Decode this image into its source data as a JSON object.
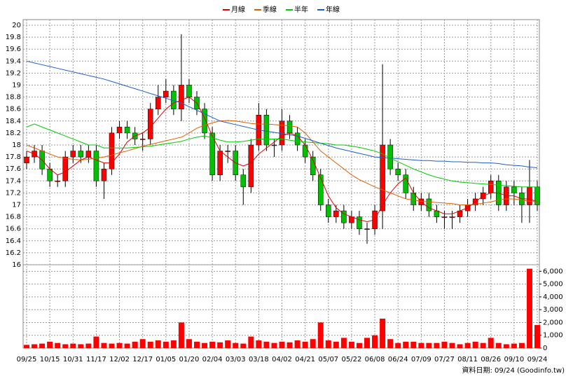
{
  "chart_data": {
    "type": "candlestick",
    "categories": [
      "09/25",
      null,
      null,
      "10/15",
      null,
      null,
      "10/31",
      null,
      null,
      "11/17",
      null,
      null,
      "12/02",
      null,
      null,
      "12/17",
      null,
      null,
      "01/05",
      null,
      null,
      "01/20",
      null,
      null,
      "02/04",
      null,
      null,
      "03/03",
      null,
      null,
      "03/18",
      null,
      null,
      "04/02",
      null,
      null,
      "04/21",
      null,
      null,
      "05/07",
      null,
      null,
      "05/22",
      null,
      null,
      "06/08",
      null,
      null,
      "06/24",
      null,
      null,
      "07/09",
      null,
      null,
      "07/27",
      null,
      null,
      "08/11",
      null,
      null,
      "08/26",
      null,
      null,
      "09/10",
      null,
      null,
      "09/24"
    ],
    "open": [
      17.7,
      17.8,
      17.9,
      17.6,
      17.4,
      17.4,
      17.8,
      17.9,
      17.8,
      17.9,
      17.4,
      17.6,
      18.2,
      18.3,
      18.2,
      18.1,
      18.1,
      18.6,
      18.8,
      18.9,
      18.6,
      19.0,
      18.8,
      18.6,
      18.2,
      17.5,
      17.9,
      17.9,
      17.5,
      17.3,
      18.0,
      18.5,
      18.0,
      18.0,
      18.4,
      18.2,
      18.0,
      17.8,
      17.5,
      17.0,
      16.8,
      16.9,
      16.7,
      16.8,
      16.6,
      16.6,
      16.9,
      18.0,
      17.6,
      17.5,
      17.2,
      17.0,
      17.1,
      16.9,
      16.8,
      16.8,
      16.8,
      16.9,
      17.0,
      17.1,
      17.2,
      17.4,
      17.0,
      17.3,
      17.2,
      17.0,
      17.3
    ],
    "high": [
      17.9,
      18.0,
      18.0,
      17.7,
      17.5,
      17.9,
      18.0,
      18.0,
      18.0,
      18.0,
      17.7,
      18.3,
      18.4,
      18.4,
      18.3,
      18.2,
      18.7,
      19.0,
      19.1,
      19.0,
      19.85,
      19.1,
      18.9,
      18.7,
      18.3,
      18.0,
      18.0,
      18.0,
      17.6,
      18.1,
      18.7,
      18.6,
      18.1,
      18.6,
      18.5,
      18.3,
      18.1,
      17.9,
      17.6,
      17.1,
      17.0,
      17.0,
      16.9,
      16.9,
      16.7,
      17.0,
      19.35,
      18.1,
      17.7,
      17.6,
      17.3,
      17.2,
      17.2,
      17.0,
      16.9,
      16.9,
      17.0,
      17.1,
      17.2,
      17.3,
      17.5,
      17.5,
      17.4,
      17.4,
      17.3,
      17.75,
      17.4
    ],
    "low": [
      17.6,
      17.7,
      17.5,
      17.3,
      17.3,
      17.3,
      17.7,
      17.7,
      17.7,
      17.3,
      17.1,
      17.5,
      18.1,
      18.1,
      18.0,
      17.9,
      18.0,
      18.5,
      18.7,
      18.5,
      18.4,
      18.7,
      18.5,
      18.1,
      17.4,
      17.4,
      17.7,
      17.4,
      17.0,
      17.2,
      17.9,
      17.9,
      17.8,
      17.9,
      18.1,
      17.9,
      17.7,
      17.4,
      16.9,
      16.7,
      16.7,
      16.6,
      16.6,
      16.5,
      16.35,
      16.5,
      16.6,
      17.5,
      17.4,
      17.1,
      16.9,
      16.9,
      16.8,
      16.7,
      16.6,
      16.6,
      16.7,
      16.8,
      16.9,
      17.0,
      17.1,
      16.9,
      16.9,
      17.0,
      16.7,
      16.7,
      16.9
    ],
    "close": [
      17.8,
      17.9,
      17.6,
      17.4,
      17.4,
      17.8,
      17.9,
      17.8,
      17.9,
      17.4,
      17.6,
      18.2,
      18.3,
      18.2,
      18.1,
      18.1,
      18.6,
      18.8,
      18.9,
      18.6,
      19.0,
      18.8,
      18.6,
      18.2,
      17.5,
      17.9,
      17.9,
      17.5,
      17.3,
      18.0,
      18.5,
      18.0,
      18.0,
      18.4,
      18.2,
      18.0,
      17.8,
      17.5,
      17.0,
      16.8,
      16.9,
      16.7,
      16.8,
      16.6,
      16.6,
      16.9,
      18.0,
      17.6,
      17.5,
      17.2,
      17.0,
      17.1,
      16.9,
      16.8,
      16.8,
      16.8,
      16.9,
      17.0,
      17.1,
      17.2,
      17.4,
      17.0,
      17.3,
      17.2,
      17.0,
      17.3,
      17.0
    ],
    "volume": [
      250,
      300,
      350,
      500,
      400,
      300,
      350,
      300,
      350,
      900,
      400,
      350,
      400,
      350,
      500,
      700,
      500,
      600,
      500,
      600,
      2000,
      700,
      500,
      400,
      500,
      450,
      600,
      400,
      350,
      900,
      600,
      500,
      400,
      500,
      450,
      600,
      500,
      700,
      2000,
      600,
      500,
      800,
      500,
      400,
      800,
      1000,
      2300,
      700,
      400,
      500,
      500,
      400,
      400,
      400,
      500,
      400,
      300,
      400,
      500,
      400,
      800,
      400,
      300,
      350,
      400,
      6200,
      1800
    ],
    "series": [
      {
        "name": "月線",
        "color": "#e00000",
        "values": [
          17.9,
          17.85,
          17.75,
          17.6,
          17.5,
          17.55,
          17.65,
          17.75,
          17.8,
          17.75,
          17.7,
          17.7,
          17.85,
          18.05,
          18.15,
          18.2,
          18.3,
          18.45,
          18.6,
          18.7,
          18.75,
          18.8,
          18.7,
          18.45,
          18.15,
          17.9,
          17.8,
          17.7,
          17.65,
          17.7,
          17.85,
          17.95,
          18.05,
          18.15,
          18.2,
          18.15,
          18.0,
          17.75,
          17.45,
          17.15,
          16.95,
          16.85,
          16.8,
          16.75,
          16.72,
          16.75,
          17.0,
          17.2,
          17.35,
          17.45,
          17.2,
          17.05,
          16.95,
          16.9,
          16.85,
          16.85,
          16.9,
          16.95,
          17.05,
          17.15,
          17.2,
          17.2,
          17.15,
          17.15,
          17.1,
          17.1,
          17.05
        ]
      },
      {
        "name": "季線",
        "color": "#e06000",
        "values": [
          18.0,
          17.95,
          17.9,
          17.85,
          17.8,
          17.78,
          17.76,
          17.75,
          17.76,
          17.78,
          17.8,
          17.83,
          17.87,
          17.9,
          17.94,
          17.98,
          18.01,
          18.04,
          18.07,
          18.1,
          18.13,
          18.2,
          18.28,
          18.33,
          18.37,
          18.4,
          18.41,
          18.4,
          18.38,
          18.36,
          18.35,
          18.35,
          18.34,
          18.33,
          18.32,
          18.3,
          18.2,
          18.05,
          17.9,
          17.8,
          17.7,
          17.6,
          17.5,
          17.42,
          17.36,
          17.3,
          17.25,
          17.2,
          17.15,
          17.1,
          17.08,
          17.06,
          17.05,
          17.04,
          17.03,
          17.02,
          17.0,
          17.0,
          17.01,
          17.03,
          17.05,
          17.08,
          17.1,
          17.1,
          17.08,
          17.06,
          17.05
        ]
      },
      {
        "name": "半年",
        "color": "#00cc00",
        "values": [
          18.3,
          18.35,
          18.3,
          18.25,
          18.2,
          18.15,
          18.1,
          18.05,
          18.0,
          18.0,
          17.95,
          17.95,
          17.95,
          17.95,
          17.96,
          17.97,
          17.98,
          18.0,
          18.02,
          18.04,
          18.06,
          18.1,
          18.13,
          18.15,
          18.12,
          18.08,
          18.05,
          18.05,
          18.06,
          18.08,
          18.1,
          18.1,
          18.1,
          18.1,
          18.08,
          18.06,
          18.05,
          18.04,
          18.03,
          18.02,
          18.0,
          18.0,
          17.98,
          17.96,
          17.93,
          17.9,
          17.85,
          17.78,
          17.72,
          17.66,
          17.6,
          17.55,
          17.5,
          17.46,
          17.43,
          17.4,
          17.38,
          17.37,
          17.36,
          17.35,
          17.34,
          17.33,
          17.32,
          17.31,
          17.3,
          17.3,
          17.3
        ]
      },
      {
        "name": "年線",
        "color": "#1a5fd0",
        "values": [
          19.4,
          19.37,
          19.34,
          19.31,
          19.28,
          19.25,
          19.22,
          19.19,
          19.16,
          19.13,
          19.1,
          19.06,
          19.02,
          18.98,
          18.94,
          18.9,
          18.86,
          18.82,
          18.78,
          18.74,
          18.7,
          18.64,
          18.58,
          18.52,
          18.46,
          18.4,
          18.37,
          18.34,
          18.31,
          18.28,
          18.25,
          18.23,
          18.21,
          18.19,
          18.17,
          18.15,
          18.11,
          18.07,
          18.03,
          17.99,
          17.95,
          17.92,
          17.89,
          17.86,
          17.83,
          17.8,
          17.79,
          17.78,
          17.77,
          17.76,
          17.75,
          17.74,
          17.74,
          17.73,
          17.73,
          17.72,
          17.72,
          17.71,
          17.71,
          17.7,
          17.7,
          17.69,
          17.67,
          17.66,
          17.65,
          17.63,
          17.62
        ]
      }
    ],
    "ylim": [
      16,
      20
    ],
    "yticks": [
      16,
      16.2,
      16.4,
      16.6,
      16.8,
      17,
      17.2,
      17.4,
      17.6,
      17.8,
      18,
      18.2,
      18.4,
      18.6,
      18.8,
      19,
      19.2,
      19.4,
      19.6,
      19.8,
      20
    ],
    "volume_ylim": [
      0,
      6400
    ],
    "volume_ticks": [
      0,
      {
        "value": 1000,
        "label": "1,000"
      },
      {
        "value": 2000,
        "label": "2,000"
      },
      {
        "value": 3000,
        "label": "3,000"
      },
      {
        "value": 4000,
        "label": "4,000"
      },
      {
        "value": 5000,
        "label": "5,000"
      },
      {
        "value": 6000,
        "label": "6,000"
      }
    ],
    "up_color": "#ff0000",
    "down_color": "#00c000",
    "volume_color": "#ff0000",
    "grid": true
  },
  "footer": "資料日期: 09/24 (Goodinfo.tw)"
}
